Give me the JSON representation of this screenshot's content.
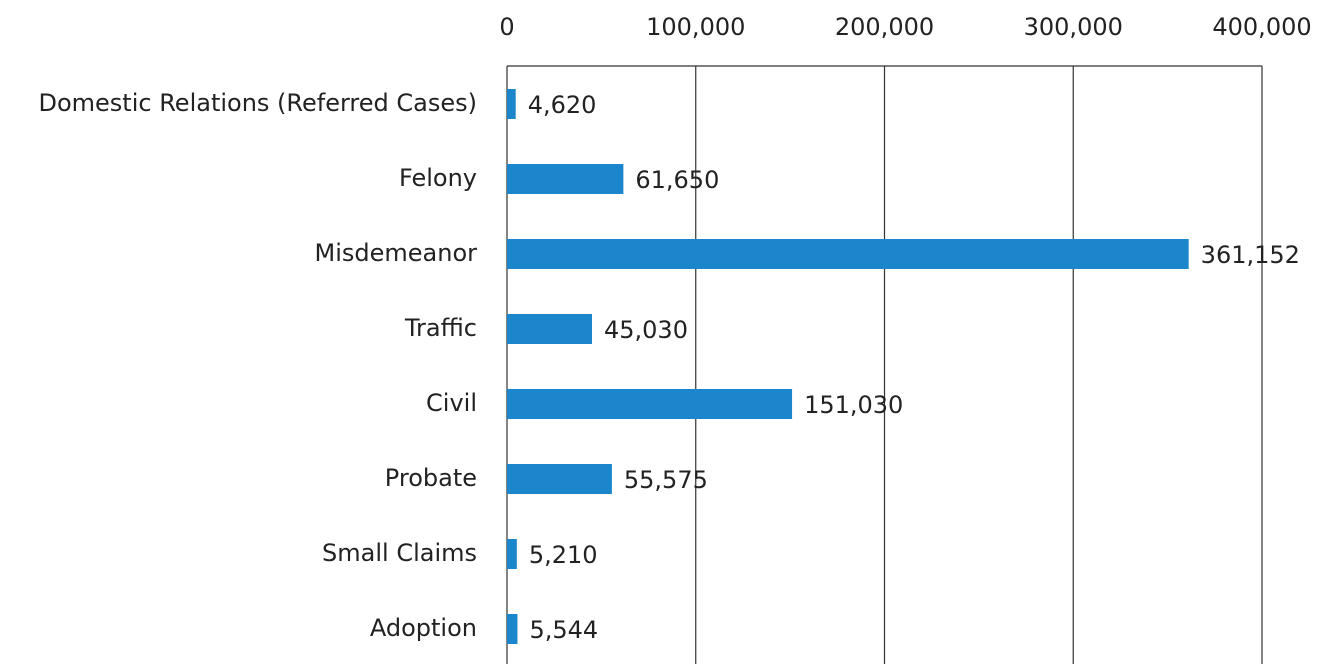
{
  "chart_data": {
    "type": "bar",
    "orientation": "horizontal",
    "categories": [
      "Domestic Relations (Referred Cases)",
      "Felony",
      "Misdemeanor",
      "Traffic",
      "Civil",
      "Probate",
      "Small Claims",
      "Adoption"
    ],
    "values": [
      4620,
      61650,
      361152,
      45030,
      151030,
      55575,
      5210,
      5544
    ],
    "value_labels": [
      "4,620",
      "61,650",
      "361,152",
      "45,030",
      "151,030",
      "55,575",
      "5,210",
      "5,544"
    ],
    "color": "#1b86cc",
    "xlim": [
      0,
      400000
    ],
    "xticks": [
      0,
      {
        "value": 100000,
        "label": "100,000"
      },
      {
        "value": 200000,
        "label": "200,000"
      },
      {
        "value": 300000,
        "label": "300,000"
      },
      {
        "value": 400000,
        "label": "400,000"
      }
    ],
    "grid": true
  }
}
